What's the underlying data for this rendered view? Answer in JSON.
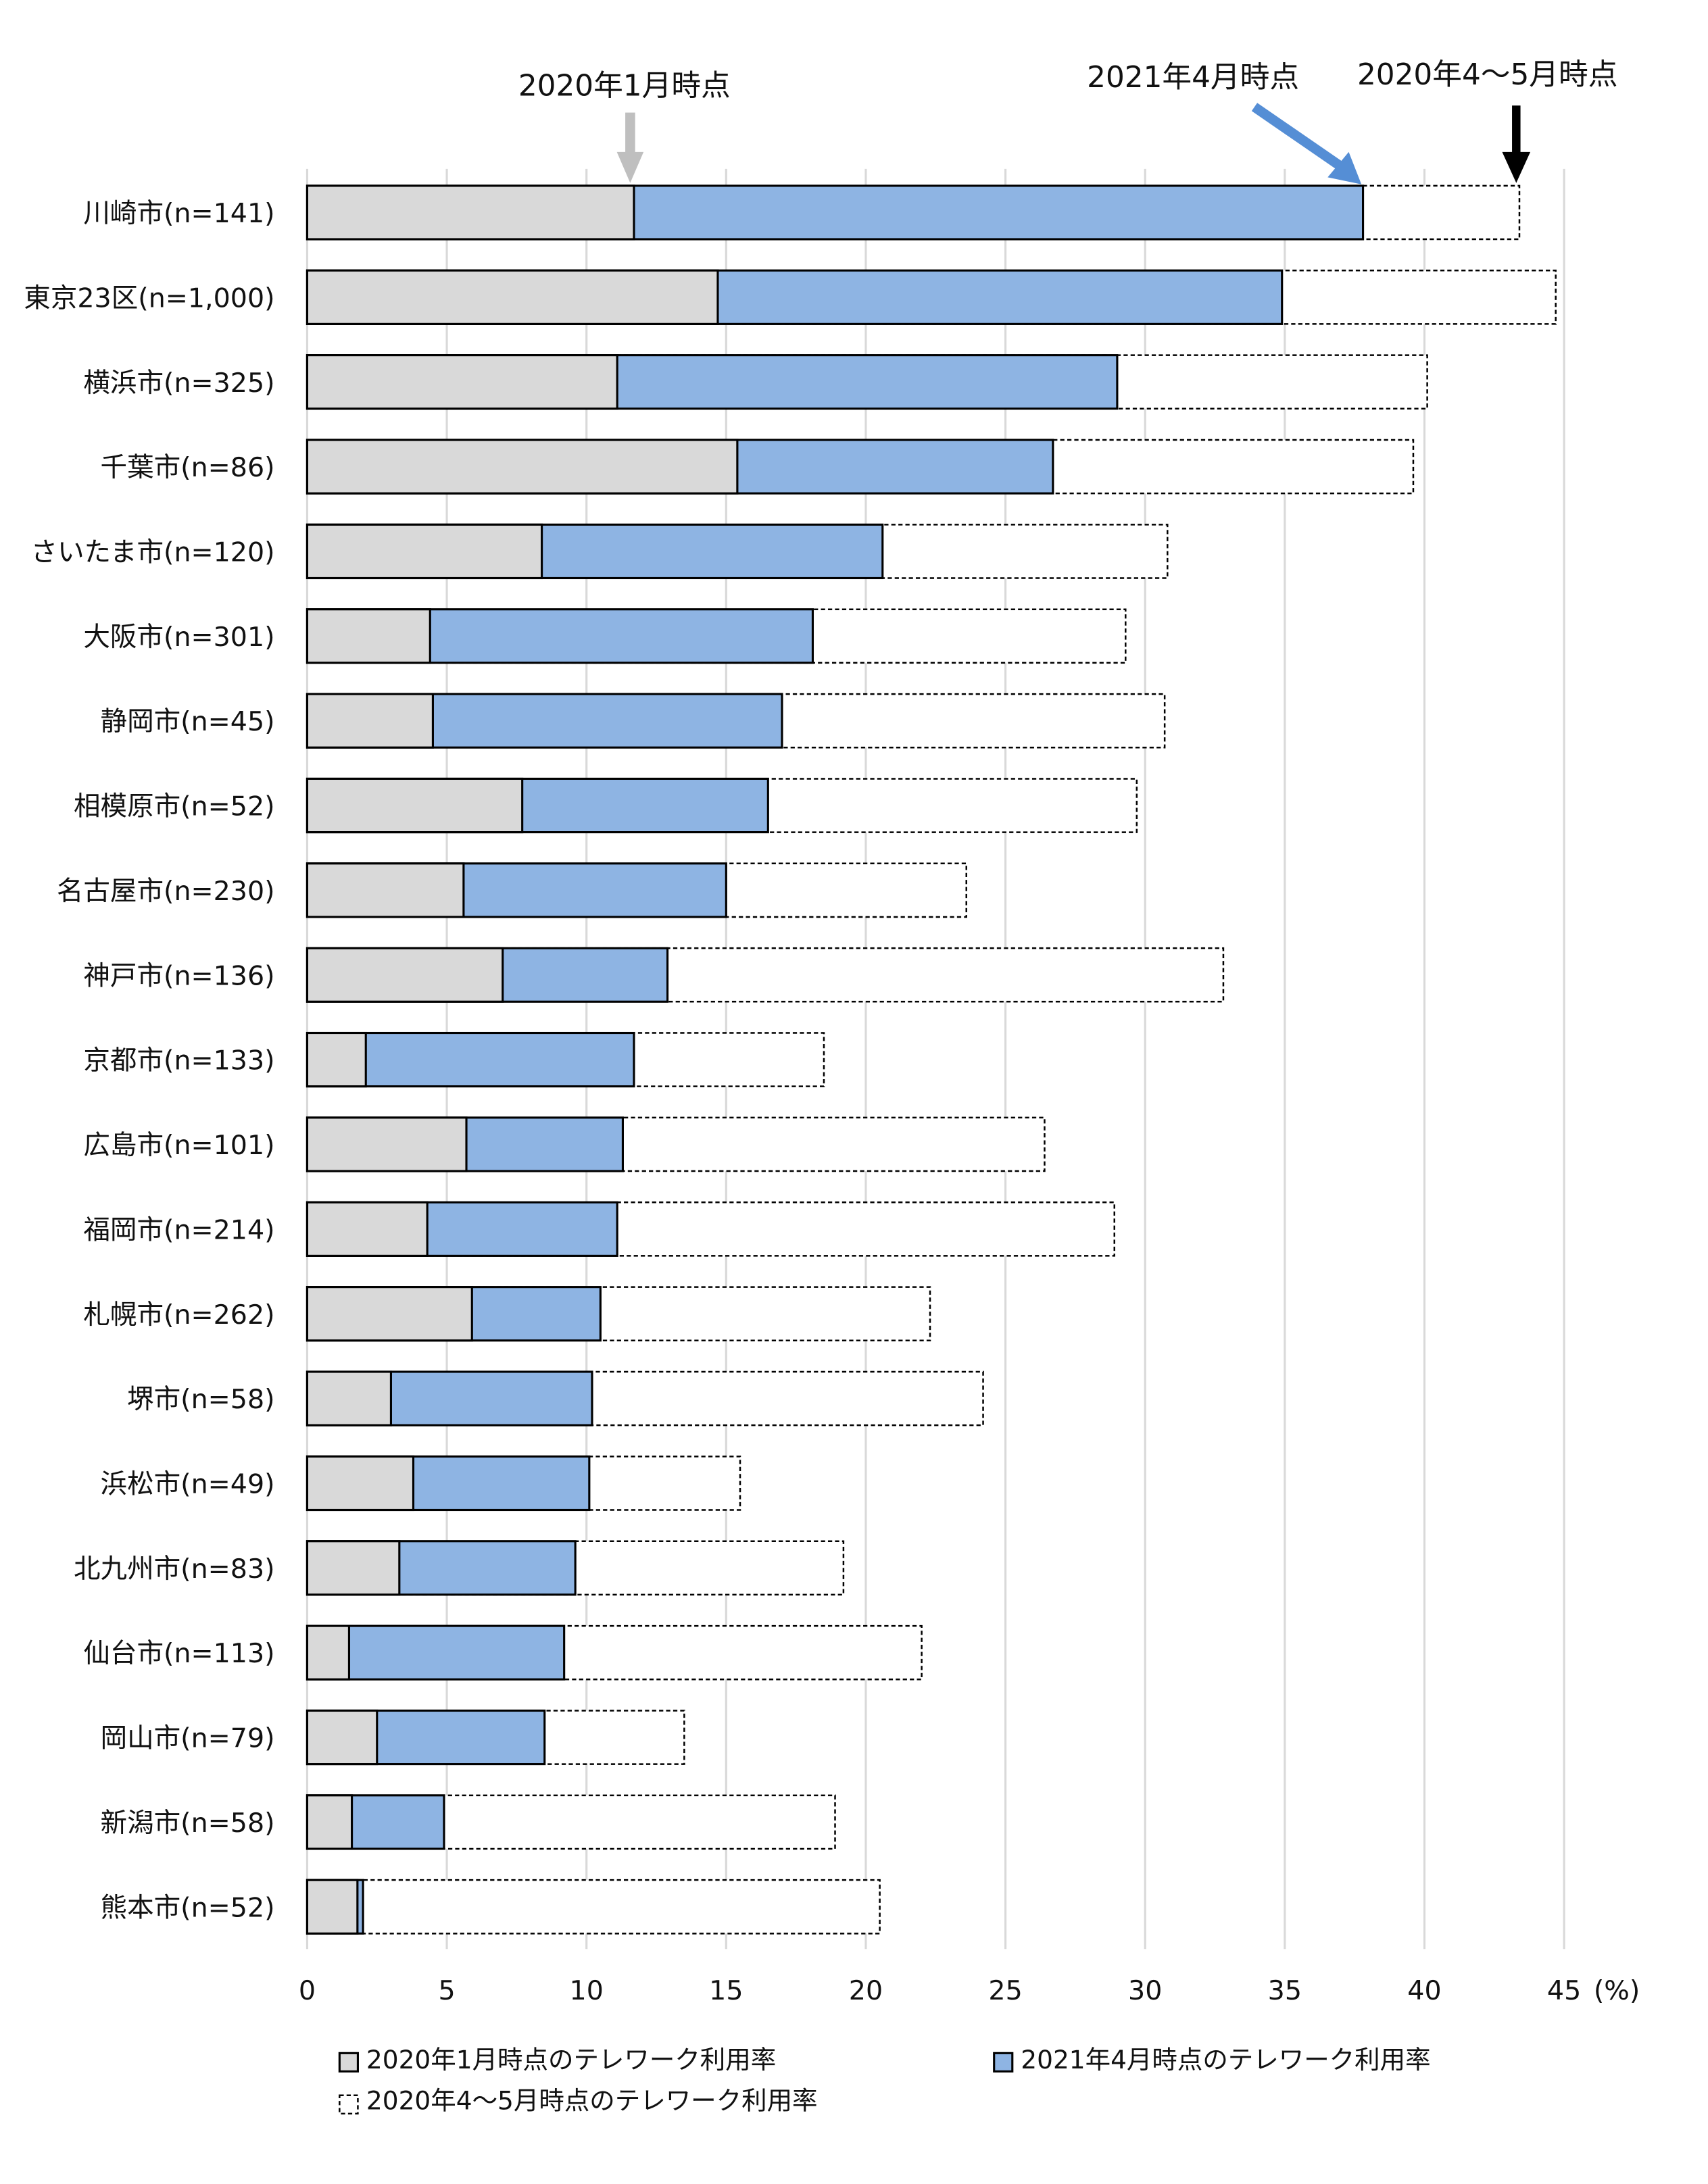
{
  "chart_data": {
    "type": "bar",
    "orientation": "horizontal",
    "categories": [
      "川崎市(n=141)",
      "東京23区(n=1,000)",
      "横浜市(n=325)",
      "千葉市(n=86)",
      "さいたま市(n=120)",
      "大阪市(n=301)",
      "静岡市(n=45)",
      "相模原市(n=52)",
      "名古屋市(n=230)",
      "神戸市(n=136)",
      "京都市(n=133)",
      "広島市(n=101)",
      "福岡市(n=214)",
      "札幌市(n=262)",
      "堺市(n=58)",
      "浜松市(n=49)",
      "北九州市(n=83)",
      "仙台市(n=113)",
      "岡山市(n=79)",
      "新潟市(n=58)",
      "熊本市(n=52)"
    ],
    "series": [
      {
        "name": "2020年1月時点のテレワーク利用率",
        "color": "#d9d9d9",
        "values": [
          11.7,
          14.7,
          11.1,
          15.4,
          8.4,
          4.4,
          4.5,
          7.7,
          5.6,
          7.0,
          2.1,
          5.7,
          4.3,
          5.9,
          3.0,
          3.8,
          3.3,
          1.5,
          2.5,
          1.6,
          1.8
        ]
      },
      {
        "name": "2021年4月時点のテレワーク利用率",
        "color": "#8eb4e3",
        "values": [
          37.8,
          34.9,
          29.0,
          26.7,
          20.6,
          18.1,
          17.0,
          16.5,
          15.0,
          12.9,
          11.7,
          11.3,
          11.1,
          10.5,
          10.2,
          10.1,
          9.6,
          9.2,
          8.5,
          4.9,
          2.0
        ]
      },
      {
        "name": "2020年4～5月時点のテレワーク利用率",
        "color": "#ffffff",
        "style": "dashed",
        "values": [
          43.4,
          44.7,
          40.1,
          39.6,
          30.8,
          29.3,
          30.7,
          29.7,
          23.6,
          32.8,
          18.5,
          26.4,
          28.9,
          22.3,
          24.2,
          15.5,
          19.2,
          22.0,
          13.5,
          18.9,
          20.5
        ]
      }
    ],
    "xlim": [
      0,
      45
    ],
    "xticks": [
      "0",
      "5",
      "10",
      "15",
      "20",
      "25",
      "30",
      "35",
      "40",
      "45"
    ],
    "xunit": "(%)",
    "grid": true,
    "legend": "bottom",
    "annotations": [
      {
        "text": "2020年1月時点",
        "arrow_color": "#bfbfbf"
      },
      {
        "text": "2021年4月時点",
        "arrow_color": "#558ed5"
      },
      {
        "text": "2020年4～5月時点",
        "arrow_color": "#000000"
      }
    ]
  }
}
